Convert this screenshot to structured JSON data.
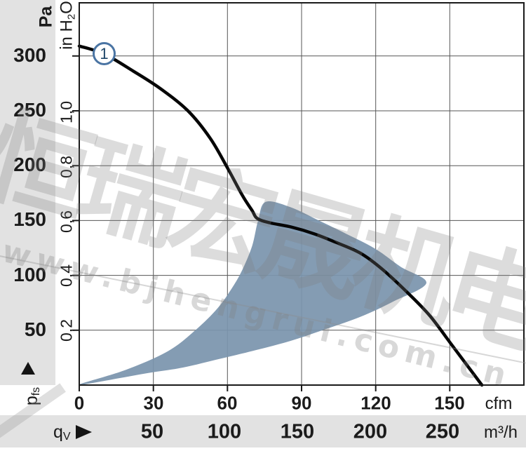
{
  "watermark": {
    "company_text": "恒瑞宏晟机电",
    "website_text": "www.bjhengrui.com.cn"
  },
  "axis_units": {
    "pressure_pa": "Pa",
    "pressure_inh2o_pre": "in H",
    "pressure_inh2o_sub": "2",
    "pressure_inh2o_post": "O",
    "flow_cfm": "cfm",
    "flow_m3h": "m³/h",
    "pressure_symbol_base": "p",
    "pressure_symbol_sub": "fs",
    "flow_symbol_base": "q",
    "flow_symbol_sub": "V"
  },
  "chart_data": {
    "type": "line",
    "title": "Fan air-performance curve: static pressure pfs vs volume flow qV",
    "xlabel": "qV (cfm / m³/h)",
    "ylabel": "pfs (Pa / in H2O)",
    "x_range_cfm": [
      0,
      180
    ],
    "y_range_pa": [
      0,
      348
    ],
    "grid": true,
    "pa_tick_values": [
      300,
      250,
      200,
      150,
      100,
      50
    ],
    "inh2o_ticks": [
      {
        "label": "1,0",
        "pa": 249
      },
      {
        "label": "0,8",
        "pa": 199
      },
      {
        "label": "0,6",
        "pa": 149
      },
      {
        "label": "0,4",
        "pa": 100
      },
      {
        "label": "0,2",
        "pa": 50
      }
    ],
    "cfm_tick_values": [
      0,
      30,
      60,
      90,
      120,
      150
    ],
    "m3h_tick_values": [
      50,
      100,
      150,
      200,
      250
    ],
    "series": [
      {
        "name": "1",
        "points_cfm_pa": [
          [
            0,
            309
          ],
          [
            10,
            302
          ],
          [
            22,
            286
          ],
          [
            33,
            270
          ],
          [
            44,
            250
          ],
          [
            53,
            225
          ],
          [
            60,
            198
          ],
          [
            66,
            173
          ],
          [
            70,
            159
          ],
          [
            72,
            152
          ],
          [
            77,
            148
          ],
          [
            86,
            144
          ],
          [
            95,
            138
          ],
          [
            104,
            130
          ],
          [
            114,
            120
          ],
          [
            123,
            105
          ],
          [
            133,
            84
          ],
          [
            142,
            63
          ],
          [
            151,
            36
          ],
          [
            158,
            15
          ],
          [
            163,
            0
          ]
        ]
      }
    ],
    "operating_region_cfm_pa": [
      [
        0,
        0.5
      ],
      [
        19,
        14
      ],
      [
        36,
        31
      ],
      [
        47,
        50
      ],
      [
        56,
        70
      ],
      [
        62,
        89
      ],
      [
        66,
        105
      ],
      [
        70,
        127
      ],
      [
        72.4,
        150
      ],
      [
        75.5,
        167
      ],
      [
        85.7,
        162
      ],
      [
        97,
        150
      ],
      [
        108,
        138
      ],
      [
        120,
        124
      ],
      [
        130,
        108
      ],
      [
        140.5,
        93
      ],
      [
        127,
        76
      ],
      [
        113.6,
        62
      ],
      [
        98.5,
        50
      ],
      [
        85.2,
        40
      ],
      [
        70,
        31
      ],
      [
        57,
        24
      ],
      [
        42,
        16
      ],
      [
        28,
        11
      ],
      [
        13,
        5
      ]
    ],
    "marker": {
      "label": "1",
      "cfm": 10,
      "pa": 302
    },
    "colors": {
      "curve": "#060606",
      "operating_region": "#7b95ad",
      "marker_stroke": "#4a74a3",
      "marker_text": "#1d4568",
      "grid_line": "#555555",
      "axis_border": "#1a1a1a",
      "band_gray": "#e2e2e2"
    }
  }
}
